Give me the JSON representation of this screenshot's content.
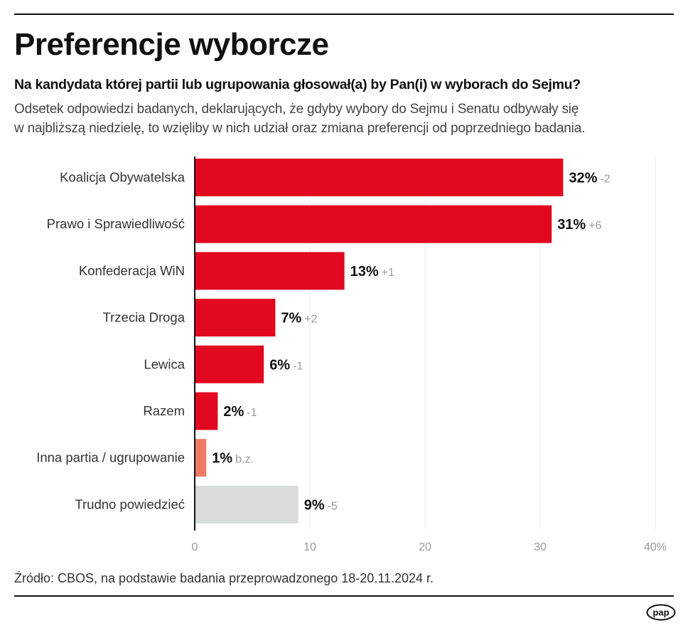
{
  "title": "Preferencje wyborcze",
  "subtitle": "Na kandydata której partii lub ugrupowania głosował(a) by Pan(i) w wyborach do Sejmu?",
  "description": [
    "Odsetek odpowiedzi badanych, deklarujących, że gdyby wybory do Sejmu i Senatu odbywały się",
    "w najbliższą niedzielę, to wzięliby w nich udział oraz zmiana preferencji od poprzedniego badania."
  ],
  "source": "Źródło: CBOS, na podstawie badania przeprowadzonego 18-20.11.2024 r.",
  "logo": "pap",
  "chart_data": {
    "type": "bar",
    "orientation": "horizontal",
    "categories": [
      "Koalicja Obywatelska",
      "Prawo i Sprawiedliwość",
      "Konfederacja WiN",
      "Trzecia Droga",
      "Lewica",
      "Razem",
      "Inna partia / ugrupowanie",
      "Trudno powiedzieć"
    ],
    "values": [
      32,
      31,
      13,
      7,
      6,
      2,
      1,
      9
    ],
    "value_labels": [
      "32%",
      "31%",
      "13%",
      "7%",
      "6%",
      "2%",
      "1%",
      "9%"
    ],
    "changes": [
      "-2",
      "+6",
      "+1",
      "+2",
      "-1",
      "-1",
      "b.z.",
      "-5"
    ],
    "colors": [
      "#e1081f",
      "#e1081f",
      "#e1081f",
      "#e1081f",
      "#e1081f",
      "#e1081f",
      "#ee7a66",
      "#d9dcdd"
    ],
    "xlim": [
      0,
      40
    ],
    "xticks": [
      "0",
      "10",
      "20",
      "30",
      "40%"
    ],
    "grid": true,
    "xlabel": "",
    "ylabel": ""
  }
}
